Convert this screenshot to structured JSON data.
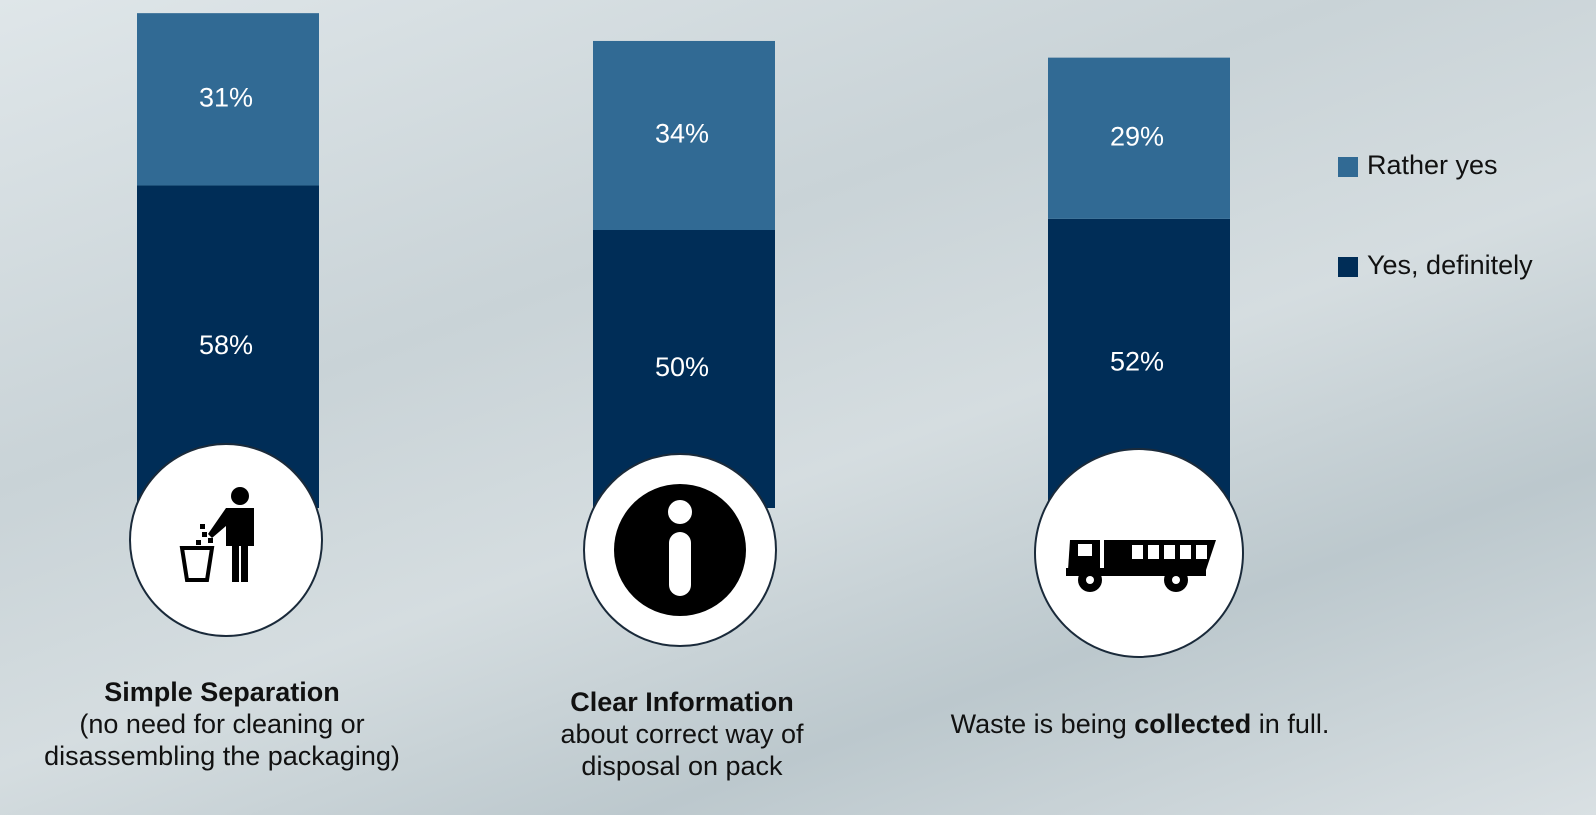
{
  "chart_data": {
    "type": "stacked_bar",
    "categories": [
      {
        "parts": [
          "Simple Separation",
          "(no need for cleaning or disassembling the packaging)"
        ],
        "bold": [
          true,
          false
        ]
      },
      {
        "parts": [
          "Clear Information",
          "about correct way of disposal on pack"
        ],
        "bold": [
          true,
          false
        ]
      },
      {
        "parts": [
          "Waste is being ",
          "collected",
          " in full."
        ],
        "bold": [
          false,
          true,
          false
        ]
      }
    ],
    "series": [
      {
        "name": "Yes, definitely",
        "color": "#002d57",
        "values": [
          58,
          50,
          52
        ],
        "value_labels": [
          "58%",
          "50%",
          "52%"
        ]
      },
      {
        "name": "Rather yes",
        "color": "#316a94",
        "values": [
          31,
          34,
          29
        ],
        "value_labels": [
          "31%",
          "34%",
          "29%"
        ]
      }
    ],
    "legend": "right"
  }
}
